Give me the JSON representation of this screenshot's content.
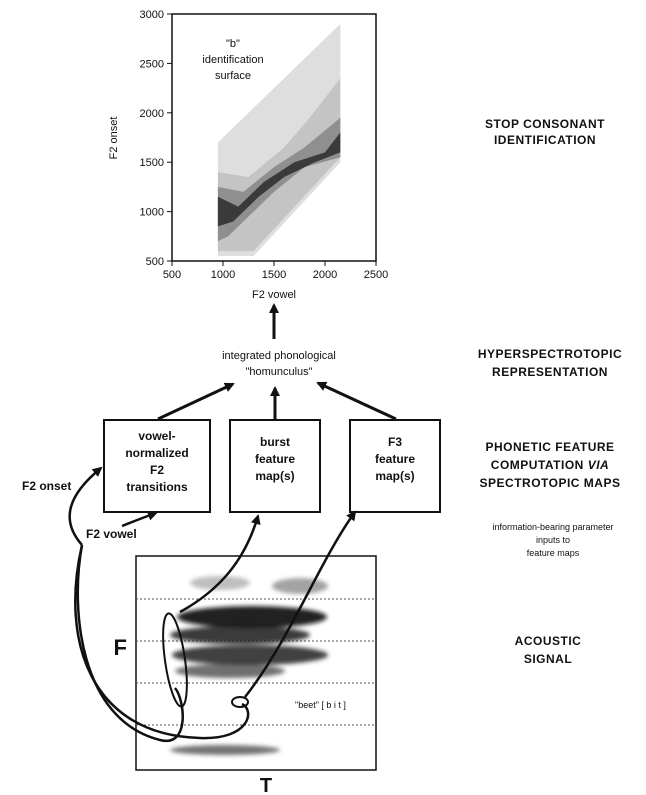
{
  "chart_data": {
    "type": "area",
    "annotation": [
      "\"b\"",
      "identification",
      "surface"
    ],
    "xlabel": "F2 vowel",
    "ylabel": "F2 onset",
    "xlim": [
      500,
      2500
    ],
    "ylim": [
      500,
      3000
    ],
    "x_ticks": [
      "500",
      "1000",
      "1500",
      "2000",
      "2500"
    ],
    "y_ticks": [
      "500",
      "1000",
      "1500",
      "2000",
      "2500",
      "3000"
    ],
    "surface_outline": [
      [
        950,
        550
      ],
      [
        950,
        1700
      ],
      [
        2150,
        2900
      ],
      [
        2150,
        1500
      ],
      [
        1300,
        550
      ]
    ],
    "contours": [
      {
        "level": "low",
        "color": "#c4c4c4",
        "points": [
          [
            950,
            600
          ],
          [
            950,
            1400
          ],
          [
            1250,
            1350
          ],
          [
            1600,
            1650
          ],
          [
            1850,
            1950
          ],
          [
            2150,
            2350
          ],
          [
            2150,
            1550
          ],
          [
            1300,
            600
          ]
        ]
      },
      {
        "level": "mid",
        "color": "#8f8f8f",
        "points": [
          [
            950,
            700
          ],
          [
            950,
            1250
          ],
          [
            1200,
            1200
          ],
          [
            1500,
            1450
          ],
          [
            1800,
            1650
          ],
          [
            2150,
            1950
          ],
          [
            2150,
            1550
          ],
          [
            1800,
            1450
          ],
          [
            1500,
            1200
          ],
          [
            1250,
            950
          ],
          [
            1050,
            750
          ]
        ]
      },
      {
        "level": "high",
        "color": "#3a3a3a",
        "points": [
          [
            950,
            850
          ],
          [
            950,
            1150
          ],
          [
            1150,
            1050
          ],
          [
            1400,
            1300
          ],
          [
            1700,
            1500
          ],
          [
            2000,
            1600
          ],
          [
            2150,
            1800
          ],
          [
            2150,
            1600
          ],
          [
            1900,
            1500
          ],
          [
            1600,
            1350
          ],
          [
            1350,
            1150
          ],
          [
            1100,
            900
          ]
        ]
      }
    ]
  },
  "stages": {
    "identification": [
      "STOP   CONSONANT",
      "IDENTIFICATION"
    ],
    "hyperspectrotopic": [
      "HYPERSPECTROTOPIC",
      "REPRESENTATION"
    ],
    "phonetic": [
      "PHONETIC   FEATURE",
      "COMPUTATION   VIA",
      "SPECTROTOPIC   MAPS"
    ],
    "phonetic_via": "VIA",
    "acoustic": [
      "ACOUSTIC",
      "SIGNAL"
    ]
  },
  "homunculus": [
    "integrated    phonological",
    "\"homunculus\""
  ],
  "feature_boxes": {
    "f2": [
      "vowel-",
      "normalized",
      "F2",
      "transitions"
    ],
    "burst": [
      "burst",
      "feature",
      "map(s)"
    ],
    "f3": [
      "F3",
      "feature",
      "map(s)"
    ]
  },
  "inputs": {
    "f2_onset": "F2    onset",
    "f2_vowel": "F2    vowel",
    "note": [
      "information-bearing   parameter",
      "inputs to",
      "feature maps"
    ]
  },
  "spectrogram": {
    "f_label": "F",
    "t_label": "T",
    "word": "\"beet\"  [ b i t ]"
  }
}
